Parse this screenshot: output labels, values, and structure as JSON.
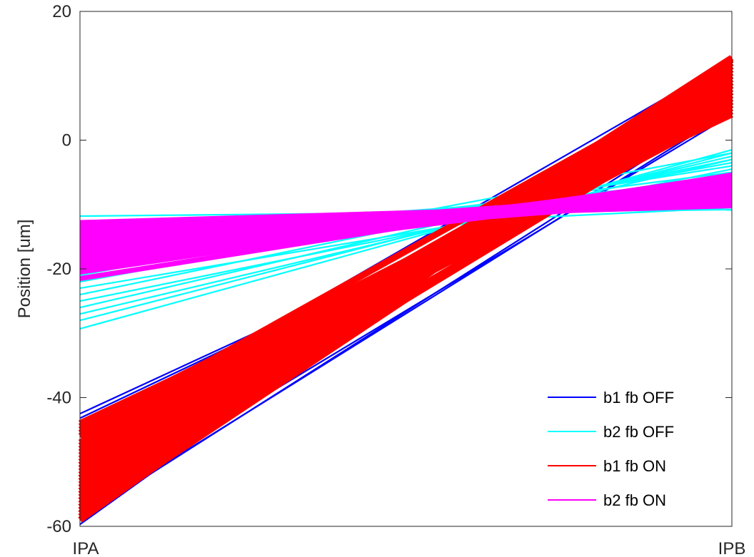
{
  "chart_data": {
    "type": "line",
    "title": "",
    "xlabel": "",
    "ylabel": "Position [um]",
    "categories": [
      "IPA",
      "IPB"
    ],
    "ylim": [
      -60,
      20
    ],
    "yticks": [
      20,
      0,
      -20,
      -40,
      -60
    ],
    "grid": false,
    "legend_position": "bottom-right",
    "series": [
      {
        "name": "b1 fb OFF",
        "color": "#0000ff",
        "bundle": [
          [
            -42.5,
            4.3
          ],
          [
            -43.2,
            5.0
          ],
          [
            -45.8,
            12.5
          ],
          [
            -57.0,
            4.0
          ],
          [
            -58.5,
            4.6
          ],
          [
            -59.7,
            12.9
          ],
          [
            -56.2,
            12.2
          ],
          [
            -43.8,
            4.8
          ],
          [
            -57.5,
            12.7
          ],
          [
            -58.8,
            5.5
          ]
        ]
      },
      {
        "name": "b2 fb OFF",
        "color": "#00ffff",
        "bundle": [
          [
            -11.8,
            -10.8
          ],
          [
            -13.0,
            -9.8
          ],
          [
            -14.5,
            -7.5
          ],
          [
            -16.5,
            -6.0
          ],
          [
            -18.0,
            -5.0
          ],
          [
            -20.0,
            -4.0
          ],
          [
            -22.0,
            -3.5
          ],
          [
            -24.0,
            -3.0
          ],
          [
            -26.0,
            -2.5
          ],
          [
            -28.0,
            -2.0
          ],
          [
            -29.3,
            -1.5
          ],
          [
            -23.0,
            -6.0
          ],
          [
            -25.0,
            -4.5
          ],
          [
            -27.0,
            -3.0
          ],
          [
            -17.0,
            -8.0
          ],
          [
            -21.0,
            -2.0
          ],
          [
            -15.5,
            -10.5
          ],
          [
            -19.0,
            -7.0
          ]
        ]
      },
      {
        "name": "b1 fb ON",
        "color": "#ff0000",
        "bundle": [
          [
            -44.0,
            4.0
          ],
          [
            -45.0,
            5.0
          ],
          [
            -46.0,
            6.0
          ],
          [
            -47.0,
            6.5
          ],
          [
            -48.0,
            7.0
          ],
          [
            -49.0,
            7.5
          ],
          [
            -50.0,
            8.0
          ],
          [
            -51.0,
            8.5
          ],
          [
            -52.0,
            9.0
          ],
          [
            -53.0,
            9.5
          ],
          [
            -54.0,
            10.0
          ],
          [
            -55.0,
            10.5
          ],
          [
            -56.0,
            11.0
          ],
          [
            -57.0,
            11.5
          ],
          [
            -58.0,
            12.0
          ],
          [
            -59.0,
            12.5
          ],
          [
            -44.5,
            7.0
          ],
          [
            -47.5,
            10.0
          ],
          [
            -50.5,
            12.0
          ],
          [
            -53.5,
            5.5
          ],
          [
            -56.5,
            7.5
          ],
          [
            -58.5,
            9.0
          ],
          [
            -45.5,
            11.0
          ],
          [
            -49.5,
            4.5
          ],
          [
            -52.5,
            12.8
          ],
          [
            -55.5,
            6.0
          ],
          [
            -48.5,
            9.5
          ],
          [
            -51.5,
            6.5
          ],
          [
            -54.5,
            11.5
          ],
          [
            -57.5,
            8.5
          ]
        ]
      },
      {
        "name": "b2 fb ON",
        "color": "#ff00ff",
        "bundle": [
          [
            -12.8,
            -9.8
          ],
          [
            -13.5,
            -9.5
          ],
          [
            -14.0,
            -9.0
          ],
          [
            -14.5,
            -8.5
          ],
          [
            -15.0,
            -8.0
          ],
          [
            -15.5,
            -7.8
          ],
          [
            -16.0,
            -7.5
          ],
          [
            -16.5,
            -7.2
          ],
          [
            -17.0,
            -7.0
          ],
          [
            -17.5,
            -6.8
          ],
          [
            -18.0,
            -6.5
          ],
          [
            -18.5,
            -6.2
          ],
          [
            -19.0,
            -6.0
          ],
          [
            -19.5,
            -5.8
          ],
          [
            -20.0,
            -5.6
          ],
          [
            -20.5,
            -5.5
          ],
          [
            -21.5,
            -5.4
          ],
          [
            -13.2,
            -10.2
          ],
          [
            -16.8,
            -9.0
          ],
          [
            -19.8,
            -7.2
          ]
        ]
      }
    ]
  }
}
